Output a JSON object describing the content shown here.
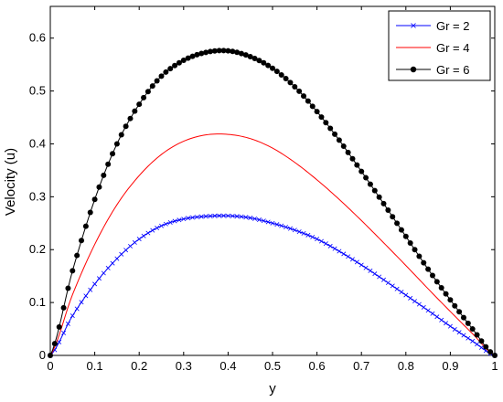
{
  "chart_data": {
    "type": "line",
    "xlabel": "y",
    "ylabel": "Velocity (u)",
    "xlim": [
      0,
      1
    ],
    "ylim": [
      0,
      0.6
    ],
    "grid": false,
    "legend_position": "top-right",
    "x_ticks": [
      "0",
      "0.1",
      "0.2",
      "0.3",
      "0.4",
      "0.5",
      "0.6",
      "0.7",
      "0.8",
      "0.9",
      "1"
    ],
    "y_ticks": [
      "0",
      "0.1",
      "0.2",
      "0.3",
      "0.4",
      "0.5",
      "0.6"
    ],
    "x": [
      0,
      0.05,
      0.1,
      0.15,
      0.2,
      0.25,
      0.3,
      0.35,
      0.4,
      0.45,
      0.5,
      0.55,
      0.6,
      0.65,
      0.7,
      0.75,
      0.8,
      0.85,
      0.9,
      0.95,
      1.0
    ],
    "series": [
      {
        "name": "Gr = 2",
        "color": "#0000ff",
        "marker": "x",
        "values": [
          0,
          0.075,
          0.135,
          0.183,
          0.22,
          0.245,
          0.258,
          0.263,
          0.264,
          0.26,
          0.25,
          0.237,
          0.22,
          0.197,
          0.171,
          0.143,
          0.114,
          0.085,
          0.055,
          0.027,
          0
        ]
      },
      {
        "name": "Gr = 4",
        "color": "#ff0000",
        "marker": "none",
        "values": [
          0,
          0.115,
          0.21,
          0.285,
          0.34,
          0.38,
          0.405,
          0.417,
          0.418,
          0.41,
          0.392,
          0.365,
          0.332,
          0.295,
          0.255,
          0.213,
          0.17,
          0.126,
          0.083,
          0.041,
          0
        ]
      },
      {
        "name": "Gr = 6",
        "color": "#000000",
        "marker": "dot",
        "values": [
          0,
          0.16,
          0.295,
          0.4,
          0.475,
          0.528,
          0.558,
          0.573,
          0.576,
          0.565,
          0.543,
          0.508,
          0.461,
          0.407,
          0.348,
          0.287,
          0.225,
          0.163,
          0.105,
          0.05,
          0
        ]
      }
    ]
  }
}
